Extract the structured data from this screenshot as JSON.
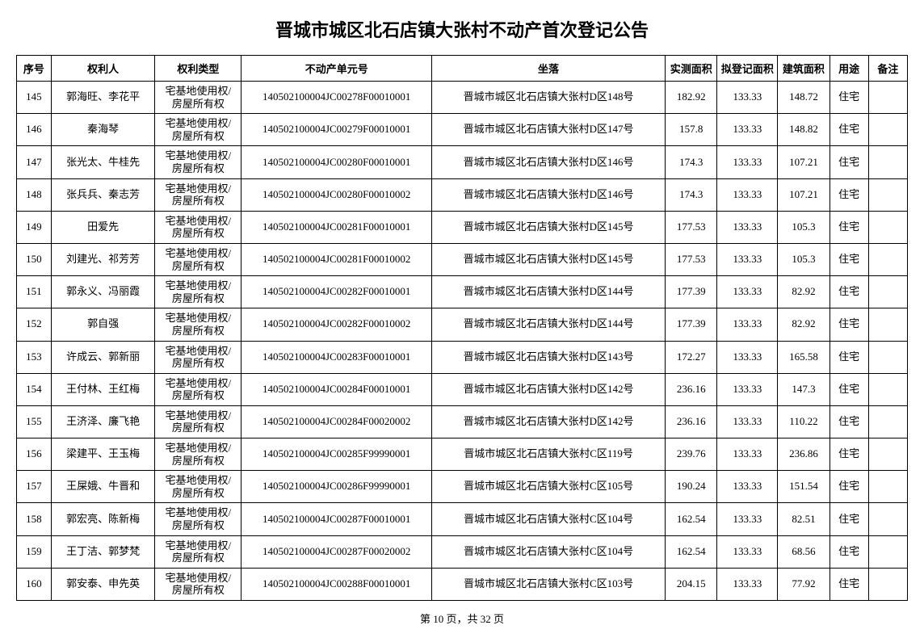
{
  "title": "晋城市城区北石店镇大张村不动产首次登记公告",
  "columns": [
    "序号",
    "权利人",
    "权利类型",
    "不动产单元号",
    "坐落",
    "实测面积",
    "拟登记面积",
    "建筑面积",
    "用途",
    "备注"
  ],
  "rights_type": "宅基地使用权/\n房屋所有权",
  "rows": [
    {
      "seq": "145",
      "owner": "郭海旺、李花平",
      "unit": "140502100004JC00278F00010001",
      "location": "晋城市城区北石店镇大张村D区148号",
      "area1": "182.92",
      "area2": "133.33",
      "area3": "148.72",
      "use": "住宅",
      "note": ""
    },
    {
      "seq": "146",
      "owner": "秦海琴",
      "unit": "140502100004JC00279F00010001",
      "location": "晋城市城区北石店镇大张村D区147号",
      "area1": "157.8",
      "area2": "133.33",
      "area3": "148.82",
      "use": "住宅",
      "note": ""
    },
    {
      "seq": "147",
      "owner": "张光太、牛桂先",
      "unit": "140502100004JC00280F00010001",
      "location": "晋城市城区北石店镇大张村D区146号",
      "area1": "174.3",
      "area2": "133.33",
      "area3": "107.21",
      "use": "住宅",
      "note": ""
    },
    {
      "seq": "148",
      "owner": "张兵兵、秦志芳",
      "unit": "140502100004JC00280F00010002",
      "location": "晋城市城区北石店镇大张村D区146号",
      "area1": "174.3",
      "area2": "133.33",
      "area3": "107.21",
      "use": "住宅",
      "note": ""
    },
    {
      "seq": "149",
      "owner": "田爱先",
      "unit": "140502100004JC00281F00010001",
      "location": "晋城市城区北石店镇大张村D区145号",
      "area1": "177.53",
      "area2": "133.33",
      "area3": "105.3",
      "use": "住宅",
      "note": ""
    },
    {
      "seq": "150",
      "owner": "刘建光、祁芳芳",
      "unit": "140502100004JC00281F00010002",
      "location": "晋城市城区北石店镇大张村D区145号",
      "area1": "177.53",
      "area2": "133.33",
      "area3": "105.3",
      "use": "住宅",
      "note": ""
    },
    {
      "seq": "151",
      "owner": "郭永义、冯丽霞",
      "unit": "140502100004JC00282F00010001",
      "location": "晋城市城区北石店镇大张村D区144号",
      "area1": "177.39",
      "area2": "133.33",
      "area3": "82.92",
      "use": "住宅",
      "note": ""
    },
    {
      "seq": "152",
      "owner": "郭自强",
      "unit": "140502100004JC00282F00010002",
      "location": "晋城市城区北石店镇大张村D区144号",
      "area1": "177.39",
      "area2": "133.33",
      "area3": "82.92",
      "use": "住宅",
      "note": ""
    },
    {
      "seq": "153",
      "owner": "许成云、郭新丽",
      "unit": "140502100004JC00283F00010001",
      "location": "晋城市城区北石店镇大张村D区143号",
      "area1": "172.27",
      "area2": "133.33",
      "area3": "165.58",
      "use": "住宅",
      "note": ""
    },
    {
      "seq": "154",
      "owner": "王付林、王红梅",
      "unit": "140502100004JC00284F00010001",
      "location": "晋城市城区北石店镇大张村D区142号",
      "area1": "236.16",
      "area2": "133.33",
      "area3": "147.3",
      "use": "住宅",
      "note": ""
    },
    {
      "seq": "155",
      "owner": "王济泽、廉飞艳",
      "unit": "140502100004JC00284F00020002",
      "location": "晋城市城区北石店镇大张村D区142号",
      "area1": "236.16",
      "area2": "133.33",
      "area3": "110.22",
      "use": "住宅",
      "note": ""
    },
    {
      "seq": "156",
      "owner": "梁建平、王玉梅",
      "unit": "140502100004JC00285F99990001",
      "location": "晋城市城区北石店镇大张村C区119号",
      "area1": "239.76",
      "area2": "133.33",
      "area3": "236.86",
      "use": "住宅",
      "note": ""
    },
    {
      "seq": "157",
      "owner": "王屎娥、牛晋和",
      "unit": "140502100004JC00286F99990001",
      "location": "晋城市城区北石店镇大张村C区105号",
      "area1": "190.24",
      "area2": "133.33",
      "area3": "151.54",
      "use": "住宅",
      "note": ""
    },
    {
      "seq": "158",
      "owner": "郭宏亮、陈新梅",
      "unit": "140502100004JC00287F00010001",
      "location": "晋城市城区北石店镇大张村C区104号",
      "area1": "162.54",
      "area2": "133.33",
      "area3": "82.51",
      "use": "住宅",
      "note": ""
    },
    {
      "seq": "159",
      "owner": "王丁洁、郭梦梵",
      "unit": "140502100004JC00287F00020002",
      "location": "晋城市城区北石店镇大张村C区104号",
      "area1": "162.54",
      "area2": "133.33",
      "area3": "68.56",
      "use": "住宅",
      "note": ""
    },
    {
      "seq": "160",
      "owner": "郭安泰、申先英",
      "unit": "140502100004JC00288F00010001",
      "location": "晋城市城区北石店镇大张村C区103号",
      "area1": "204.15",
      "area2": "133.33",
      "area3": "77.92",
      "use": "住宅",
      "note": ""
    }
  ],
  "footer": "第 10 页，共 32 页"
}
